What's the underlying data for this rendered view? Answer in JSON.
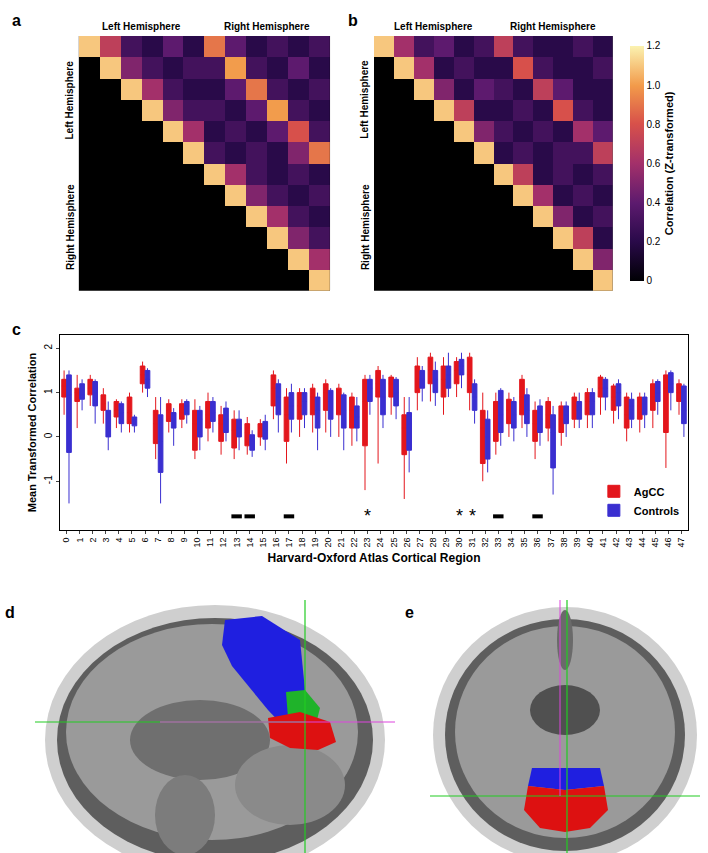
{
  "panel_labels": [
    "a",
    "b",
    "c",
    "d",
    "e"
  ],
  "chart_data": [
    {
      "type": "heatmap",
      "tick_labels": false,
      "groups": [
        "Left Hemisphere",
        "Right Hemisphere"
      ],
      "zlim": [
        0,
        1.2
      ],
      "cells": [
        [
          1.1,
          0.7,
          0.3,
          0.2,
          0.4,
          0.2,
          0.9,
          0.4,
          0.2,
          0.3,
          0.2,
          0.3
        ],
        [
          null,
          1.1,
          0.5,
          0.3,
          0.2,
          0.3,
          0.3,
          1.0,
          0.3,
          0.2,
          0.4,
          0.2
        ],
        [
          null,
          null,
          1.1,
          0.6,
          0.3,
          0.2,
          0.2,
          0.4,
          0.9,
          0.3,
          0.2,
          0.3
        ],
        [
          null,
          null,
          null,
          1.1,
          0.5,
          0.3,
          0.3,
          0.2,
          0.4,
          1.0,
          0.3,
          0.2
        ],
        [
          null,
          null,
          null,
          null,
          1.1,
          0.6,
          0.2,
          0.3,
          0.2,
          0.4,
          0.8,
          0.3
        ],
        [
          null,
          null,
          null,
          null,
          null,
          1.1,
          0.3,
          0.2,
          0.3,
          0.2,
          0.5,
          0.9
        ],
        [
          null,
          null,
          null,
          null,
          null,
          null,
          1.1,
          0.6,
          0.3,
          0.2,
          0.3,
          0.2
        ],
        [
          null,
          null,
          null,
          null,
          null,
          null,
          null,
          1.1,
          0.5,
          0.3,
          0.2,
          0.3
        ],
        [
          null,
          null,
          null,
          null,
          null,
          null,
          null,
          null,
          1.1,
          0.6,
          0.3,
          0.2
        ],
        [
          null,
          null,
          null,
          null,
          null,
          null,
          null,
          null,
          null,
          1.1,
          0.5,
          0.3
        ],
        [
          null,
          null,
          null,
          null,
          null,
          null,
          null,
          null,
          null,
          null,
          1.1,
          0.6
        ],
        [
          null,
          null,
          null,
          null,
          null,
          null,
          null,
          null,
          null,
          null,
          null,
          1.1
        ]
      ]
    },
    {
      "type": "heatmap",
      "tick_labels": false,
      "groups": [
        "Left Hemisphere",
        "Right Hemisphere"
      ],
      "colorbar": {
        "title": "Correlation (Z-transformed)",
        "range": [
          0,
          1.2
        ],
        "ticks": [
          0,
          0.2,
          0.4,
          0.6,
          0.8,
          {
            "value": 1,
            "label": "1.0"
          },
          1.2
        ]
      },
      "cells": [
        [
          1.1,
          0.6,
          0.3,
          0.4,
          0.2,
          0.3,
          0.7,
          0.3,
          0.2,
          0.2,
          0.3,
          0.2
        ],
        [
          null,
          1.1,
          0.6,
          0.2,
          0.3,
          0.2,
          0.2,
          0.8,
          0.3,
          0.2,
          0.2,
          0.3
        ],
        [
          null,
          null,
          1.1,
          0.5,
          0.2,
          0.4,
          0.3,
          0.2,
          0.7,
          0.4,
          0.2,
          0.2
        ],
        [
          null,
          null,
          null,
          1.1,
          0.7,
          0.2,
          0.2,
          0.3,
          0.2,
          0.8,
          0.3,
          0.2
        ],
        [
          null,
          null,
          null,
          null,
          1.1,
          0.5,
          0.3,
          0.2,
          0.3,
          0.2,
          0.6,
          0.4
        ],
        [
          null,
          null,
          null,
          null,
          null,
          1.1,
          0.2,
          0.3,
          0.2,
          0.3,
          0.3,
          0.7
        ],
        [
          null,
          null,
          null,
          null,
          null,
          null,
          1.1,
          0.7,
          0.2,
          0.3,
          0.2,
          0.3
        ],
        [
          null,
          null,
          null,
          null,
          null,
          null,
          null,
          1.1,
          0.6,
          0.2,
          0.3,
          0.2
        ],
        [
          null,
          null,
          null,
          null,
          null,
          null,
          null,
          null,
          1.1,
          0.5,
          0.2,
          0.3
        ],
        [
          null,
          null,
          null,
          null,
          null,
          null,
          null,
          null,
          null,
          1.1,
          0.7,
          0.2
        ],
        [
          null,
          null,
          null,
          null,
          null,
          null,
          null,
          null,
          null,
          null,
          1.1,
          0.5
        ],
        [
          null,
          null,
          null,
          null,
          null,
          null,
          null,
          null,
          null,
          null,
          null,
          1.1
        ]
      ]
    },
    {
      "type": "box",
      "xlabel": "Harvard-Oxford Atlas Cortical Region",
      "ylabel": "Mean Transformed Correlation",
      "x": [
        0,
        1,
        2,
        3,
        4,
        5,
        6,
        7,
        8,
        9,
        10,
        11,
        12,
        13,
        14,
        15,
        16,
        17,
        18,
        19,
        20,
        21,
        22,
        23,
        24,
        25,
        26,
        27,
        28,
        29,
        30,
        31,
        32,
        33,
        34,
        35,
        36,
        37,
        38,
        39,
        40,
        41,
        42,
        43,
        44,
        45,
        46,
        47
      ],
      "xlim": [
        -0.5,
        47.5
      ],
      "xticks": [
        0,
        1,
        2,
        3,
        4,
        5,
        6,
        7,
        8,
        9,
        10,
        11,
        12,
        13,
        14,
        15,
        16,
        17,
        18,
        19,
        20,
        21,
        22,
        23,
        24,
        25,
        26,
        27,
        28,
        29,
        30,
        31,
        32,
        33,
        34,
        35,
        36,
        37,
        38,
        39,
        40,
        41,
        42,
        43,
        44,
        45,
        46,
        47
      ],
      "ylim": [
        -2.1,
        2.3
      ],
      "yticks": [
        -1,
        0,
        1,
        2
      ],
      "legend": "bottom right",
      "series": [
        {
          "name": "AgCC",
          "color": "#e3161c",
          "q1": [
            0.9,
            0.8,
            0.95,
            0.6,
            0.45,
            0.3,
            1.2,
            -0.15,
            0.35,
            0.4,
            -0.3,
            0.2,
            -0.1,
            -0.25,
            -0.2,
            0.0,
            0.7,
            -0.1,
            0.4,
            0.5,
            0.6,
            0.5,
            0.2,
            -0.2,
            0.9,
            0.9,
            -0.4,
            1.0,
            1.2,
            0.9,
            1.2,
            1.0,
            -0.6,
            -0.1,
            0.3,
            0.5,
            -0.1,
            0.2,
            0.1,
            0.4,
            0.5,
            0.9,
            0.6,
            0.2,
            0.4,
            0.6,
            0.1,
            0.8
          ],
          "median": [
            1.15,
            1.0,
            1.1,
            0.75,
            0.6,
            0.55,
            1.4,
            0.3,
            0.6,
            0.55,
            0.3,
            0.5,
            0.3,
            0.15,
            0.1,
            0.2,
            1.1,
            0.5,
            0.7,
            0.9,
            1.0,
            0.8,
            0.6,
            0.8,
            1.2,
            1.2,
            0.2,
            1.3,
            1.5,
            1.3,
            1.5,
            1.4,
            0.2,
            0.4,
            0.6,
            0.9,
            0.3,
            0.5,
            0.4,
            0.7,
            0.8,
            1.1,
            0.9,
            0.5,
            0.7,
            0.9,
            1.1,
            1.0
          ],
          "q3": [
            1.3,
            1.1,
            1.3,
            0.95,
            0.8,
            0.9,
            1.6,
            0.6,
            0.75,
            0.75,
            0.6,
            0.8,
            0.5,
            0.4,
            0.3,
            0.3,
            1.4,
            0.9,
            1.0,
            1.1,
            1.2,
            1.1,
            0.9,
            1.3,
            1.5,
            1.35,
            0.5,
            1.6,
            1.8,
            1.6,
            1.7,
            1.8,
            0.6,
            0.8,
            0.85,
            1.3,
            0.6,
            0.8,
            0.7,
            0.9,
            1.0,
            1.35,
            1.15,
            0.9,
            0.9,
            1.2,
            1.4,
            1.2
          ],
          "lower": [
            0.5,
            0.2,
            0.7,
            0.3,
            0.2,
            0.1,
            1.0,
            -0.5,
            0.1,
            0.2,
            -0.5,
            -0.1,
            -0.4,
            -0.5,
            -0.4,
            -0.2,
            0.4,
            -0.6,
            0.0,
            0.1,
            0.1,
            0.0,
            -0.2,
            -1.2,
            -0.6,
            0.5,
            -1.4,
            0.6,
            0.8,
            0.5,
            0.9,
            0.6,
            -1.0,
            -0.4,
            0.0,
            0.2,
            -0.5,
            -0.1,
            -0.2,
            0.2,
            0.2,
            0.5,
            0.3,
            -0.1,
            0.1,
            0.2,
            -0.7,
            0.5
          ],
          "upper": [
            1.5,
            1.4,
            1.4,
            1.1,
            0.85,
            1.0,
            1.7,
            0.9,
            0.85,
            0.85,
            0.85,
            1.0,
            0.7,
            0.6,
            0.45,
            0.4,
            1.5,
            1.1,
            1.1,
            1.2,
            1.3,
            1.2,
            1.0,
            1.4,
            1.6,
            1.4,
            0.9,
            1.8,
            1.9,
            1.8,
            1.8,
            1.9,
            1.0,
            1.0,
            1.0,
            1.4,
            0.8,
            0.9,
            0.8,
            1.0,
            1.1,
            1.4,
            1.2,
            1.0,
            1.0,
            1.3,
            1.5,
            1.3
          ]
        },
        {
          "name": "Controls",
          "color": "#3a2fd0",
          "q1": [
            -0.35,
            0.85,
            0.7,
            0.0,
            0.3,
            0.25,
            1.1,
            -0.8,
            0.2,
            0.5,
            0.0,
            0.35,
            0.1,
            0.0,
            -0.3,
            -0.05,
            0.5,
            0.4,
            0.5,
            0.2,
            0.4,
            0.2,
            0.2,
            0.8,
            0.5,
            0.7,
            -0.3,
            1.1,
            1.0,
            1.1,
            1.4,
            0.6,
            -0.5,
            0.1,
            0.2,
            0.3,
            0.1,
            -0.7,
            0.3,
            0.4,
            0.5,
            0.9,
            0.7,
            0.4,
            0.5,
            0.8,
            1.0,
            0.3
          ],
          "median": [
            0.95,
            0.95,
            1.0,
            0.4,
            0.55,
            0.4,
            1.3,
            -0.1,
            0.4,
            0.7,
            0.4,
            0.55,
            0.4,
            0.2,
            -0.1,
            0.15,
            0.9,
            0.7,
            0.8,
            0.6,
            0.8,
            0.6,
            0.45,
            1.1,
            0.9,
            1.0,
            0.3,
            1.3,
            1.3,
            1.4,
            1.6,
            0.9,
            0.0,
            0.5,
            0.5,
            0.6,
            0.4,
            0.1,
            0.5,
            0.6,
            0.8,
            1.1,
            1.0,
            0.7,
            0.75,
            1.0,
            1.2,
            0.6
          ],
          "q3": [
            1.4,
            1.2,
            1.25,
            0.6,
            0.75,
            0.45,
            1.5,
            0.5,
            0.55,
            0.8,
            0.6,
            0.8,
            0.65,
            0.4,
            0.05,
            0.35,
            1.2,
            1.0,
            1.0,
            0.9,
            1.05,
            0.95,
            0.7,
            1.3,
            1.3,
            1.3,
            0.55,
            1.5,
            1.5,
            1.6,
            1.75,
            1.2,
            0.4,
            1.05,
            0.8,
            0.95,
            0.7,
            0.5,
            0.7,
            0.8,
            1.0,
            1.3,
            1.2,
            0.85,
            0.9,
            1.25,
            1.45,
            1.15
          ],
          "lower": [
            -1.5,
            0.6,
            0.3,
            -0.3,
            0.1,
            0.1,
            0.9,
            -1.5,
            -0.2,
            0.3,
            -0.3,
            0.1,
            -0.1,
            -0.3,
            -0.45,
            -0.3,
            0.1,
            0.1,
            0.2,
            -0.3,
            0.0,
            -0.3,
            -0.1,
            0.5,
            0.2,
            0.4,
            -0.8,
            0.8,
            0.7,
            0.9,
            1.1,
            0.3,
            -0.8,
            -0.2,
            -0.1,
            0.0,
            -0.2,
            -1.3,
            0.0,
            0.2,
            0.2,
            0.6,
            0.4,
            0.2,
            0.2,
            0.5,
            0.6,
            0.0
          ],
          "upper": [
            1.5,
            1.3,
            1.3,
            0.8,
            0.8,
            0.5,
            1.55,
            0.9,
            0.65,
            0.85,
            0.7,
            0.9,
            0.8,
            0.6,
            0.15,
            0.5,
            1.3,
            1.2,
            1.1,
            1.0,
            1.1,
            1.0,
            0.9,
            1.4,
            1.4,
            1.35,
            0.9,
            1.6,
            1.7,
            1.9,
            1.9,
            1.3,
            0.6,
            1.1,
            0.9,
            1.1,
            0.85,
            0.7,
            0.8,
            1.0,
            1.1,
            1.35,
            1.3,
            1.0,
            1.0,
            1.3,
            1.5,
            1.2
          ]
        }
      ],
      "significance_bars": [
        13,
        14,
        17,
        33,
        36
      ],
      "annotations": [
        {
          "x": 23,
          "text": "*"
        },
        {
          "x": 30,
          "text": "*"
        },
        {
          "x": 31,
          "text": "*"
        }
      ]
    }
  ]
}
